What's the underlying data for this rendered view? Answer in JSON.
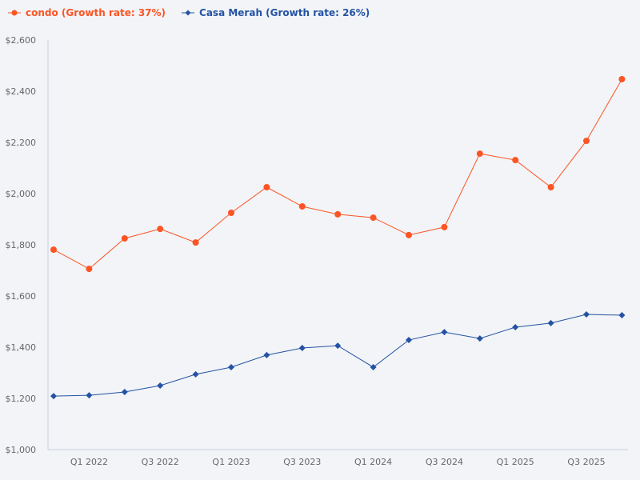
{
  "chart_data": {
    "type": "line",
    "title": "",
    "xlabel": "",
    "ylabel": "",
    "ylim": [
      1000,
      2600
    ],
    "yticks": [
      "$1,000",
      "$1,200",
      "$1,400",
      "$1,600",
      "$1,800",
      "$2,000",
      "$2,200",
      "$2,400",
      "$2,600"
    ],
    "ytick_values": [
      1000,
      1200,
      1400,
      1600,
      1800,
      2000,
      2200,
      2400,
      2600
    ],
    "x": [
      "Q4 2021",
      "Q1 2022",
      "Q2 2022",
      "Q3 2022",
      "Q4 2022",
      "Q1 2023",
      "Q2 2023",
      "Q3 2023",
      "Q4 2023",
      "Q1 2024",
      "Q2 2024",
      "Q3 2024",
      "Q4 2024",
      "Q1 2025",
      "Q2 2025",
      "Q3 2025",
      "Q4 2025"
    ],
    "xtick_labels": [
      "",
      "Q1 2022",
      "",
      "Q3 2022",
      "",
      "Q1 2023",
      "",
      "Q3 2023",
      "",
      "Q1 2024",
      "",
      "Q3 2024",
      "",
      "Q1 2025",
      "",
      "Q3 2025",
      ""
    ],
    "grid": false,
    "legend_position": "top-left",
    "series": [
      {
        "name": "condo (Growth rate: 37%)",
        "color": "#fc5424",
        "marker": "circle",
        "values": [
          1781,
          1706,
          1825,
          1862,
          1809,
          1925,
          2025,
          1950,
          1919,
          1906,
          1838,
          1869,
          2156,
          2131,
          2025,
          2206,
          2447
        ]
      },
      {
        "name": "Casa Merah (Growth rate: 26%)",
        "color": "#2452a4",
        "marker": "diamond",
        "values": [
          1209,
          1212,
          1225,
          1250,
          1294,
          1322,
          1369,
          1397,
          1406,
          1322,
          1428,
          1459,
          1434,
          1478,
          1494,
          1528,
          1525
        ]
      }
    ]
  }
}
